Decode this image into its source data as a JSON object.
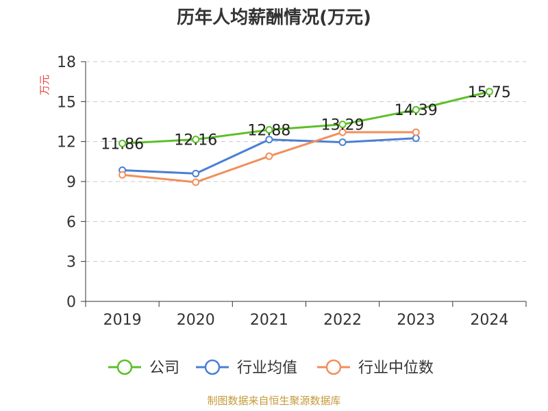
{
  "chart_data": {
    "type": "line",
    "title": "历年人均薪酬情况(万元)",
    "ylabel": "万元",
    "xlabel": "",
    "categories": [
      "2019",
      "2020",
      "2021",
      "2022",
      "2023",
      "2024"
    ],
    "ylim": [
      0,
      18
    ],
    "yticks": [
      0,
      3,
      6,
      9,
      12,
      15,
      18
    ],
    "grid": true,
    "legend_position": "bottom",
    "series": [
      {
        "name": "公司",
        "color": "#5cbf2a",
        "values": [
          11.86,
          12.16,
          12.88,
          13.29,
          14.39,
          15.75
        ],
        "labels": [
          "11.86",
          "12.16",
          "12.88",
          "13.29",
          "14.39",
          "15.75"
        ]
      },
      {
        "name": "行业均值",
        "color": "#4a7fd4",
        "values": [
          9.85,
          9.6,
          12.15,
          11.95,
          12.25,
          null
        ]
      },
      {
        "name": "行业中位数",
        "color": "#f28e5a",
        "values": [
          9.5,
          8.95,
          10.9,
          12.7,
          12.7,
          null
        ]
      }
    ]
  },
  "footer": {
    "source": "制图数据来自恒生聚源数据库"
  }
}
